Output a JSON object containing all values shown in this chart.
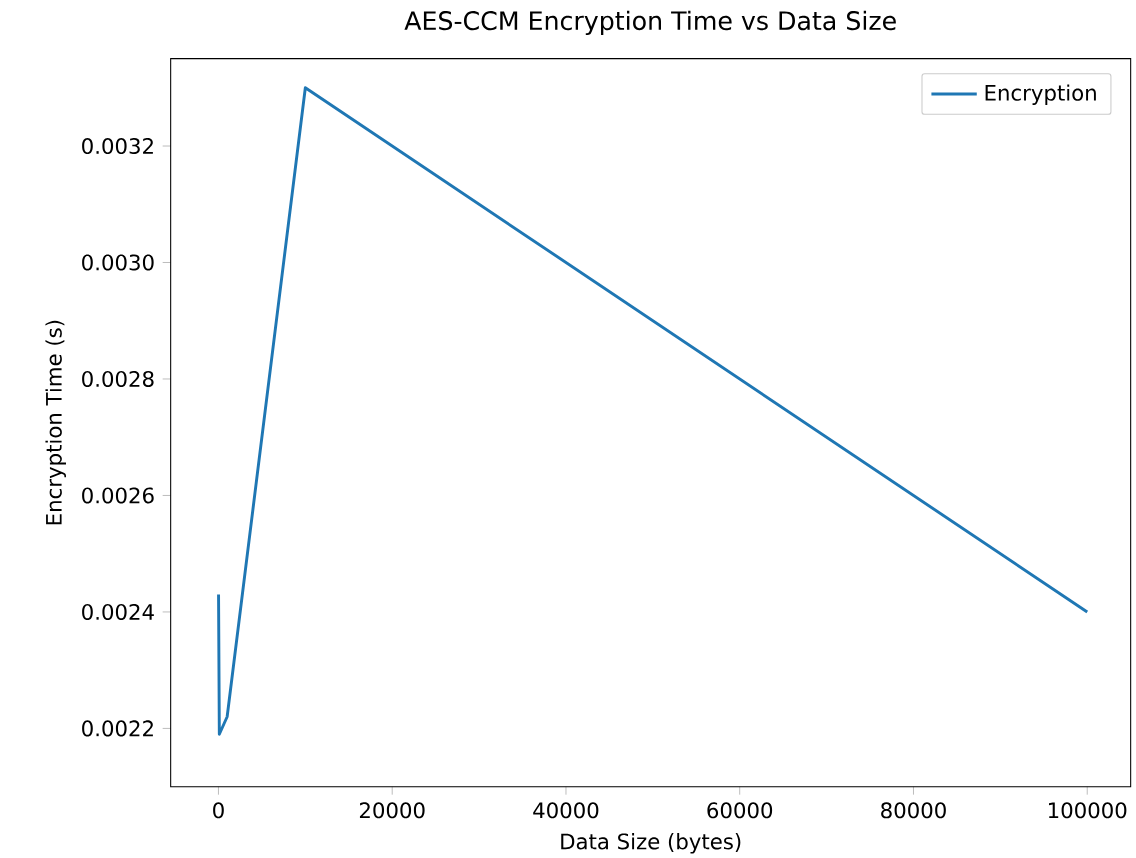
{
  "chart_data": {
    "type": "line",
    "title": "AES-CCM Encryption Time vs Data Size",
    "xlabel": "Data Size (bytes)",
    "ylabel": "Encryption Time (s)",
    "x": [
      10,
      100,
      1000,
      10000,
      100000
    ],
    "series": [
      {
        "name": "Encryption",
        "color": "#1f77b4",
        "values": [
          0.00243,
          0.00219,
          0.00222,
          0.0033,
          0.0024
        ]
      }
    ],
    "xlim": [
      -5500,
      105000
    ],
    "ylim": [
      0.0021,
      0.00335
    ],
    "xticks": [
      0,
      20000,
      40000,
      60000,
      80000,
      100000
    ],
    "yticks": [
      {
        "value": 0.0022,
        "label": "0.0022"
      },
      {
        "value": 0.0024,
        "label": "0.0024"
      },
      {
        "value": 0.0026,
        "label": "0.0026"
      },
      {
        "value": 0.0028,
        "label": "0.0028"
      },
      {
        "value": 0.003,
        "label": "0.0030"
      },
      {
        "value": 0.0032,
        "label": "0.0032"
      }
    ],
    "legend": "top right",
    "grid": false,
    "marker": "none",
    "line_style": "solid"
  }
}
